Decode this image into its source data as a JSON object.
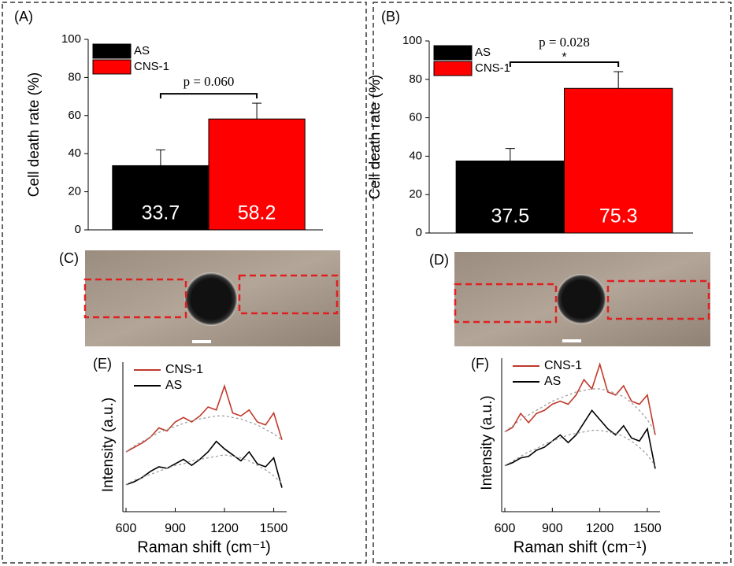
{
  "chart_data": [
    {
      "type": "bar",
      "panel_label": "(A)",
      "ylabel": "Cell death rate (%)",
      "categories": [
        null
      ],
      "series": [
        {
          "name": "AS",
          "color": "#000000",
          "values": [
            33.7
          ],
          "error": [
            8.3
          ]
        },
        {
          "name": "CNS-1",
          "color": "#ff0000",
          "values": [
            58.2
          ],
          "error": [
            8.3
          ]
        }
      ],
      "ylim": [
        0,
        100
      ],
      "yticks": [
        0,
        20,
        40,
        60,
        80,
        100
      ],
      "legend": "upper left",
      "annotation": "p = 0.060"
    },
    {
      "type": "bar",
      "panel_label": "(B)",
      "ylabel": "Cell death rate (%)",
      "categories": [
        null
      ],
      "series": [
        {
          "name": "AS",
          "color": "#000000",
          "values": [
            37.5
          ],
          "error": [
            6.5
          ]
        },
        {
          "name": "CNS-1",
          "color": "#ff0000",
          "values": [
            75.3
          ],
          "error": [
            8.7
          ]
        }
      ],
      "ylim": [
        0,
        100
      ],
      "yticks": [
        0,
        20,
        40,
        60,
        80,
        100
      ],
      "legend": "upper left",
      "annotation": "p = 0.028",
      "annotation_mark": "*"
    },
    {
      "type": "line",
      "panel_label": "(E)",
      "xlabel": "Raman shift (cm⁻¹)",
      "ylabel": "Intensity (a.u.)",
      "x": [
        600,
        650,
        700,
        750,
        800,
        850,
        900,
        950,
        1000,
        1050,
        1100,
        1150,
        1200,
        1250,
        1300,
        1350,
        1400,
        1450,
        1500,
        1550
      ],
      "series": [
        {
          "name": "CNS-1",
          "color": "#c0392b",
          "values": [
            40,
            43,
            46,
            50,
            56,
            54,
            60,
            63,
            60,
            64,
            70,
            68,
            84,
            66,
            64,
            68,
            60,
            58,
            66,
            48
          ]
        },
        {
          "name": "AS",
          "color": "#000000",
          "values": [
            18,
            20,
            23,
            27,
            30,
            29,
            32,
            35,
            31,
            35,
            40,
            47,
            42,
            38,
            34,
            40,
            32,
            30,
            36,
            16
          ]
        },
        {
          "color": "#999999",
          "dashed": true,
          "values": [
            40,
            44,
            47,
            50,
            53,
            55,
            57,
            59,
            61,
            62,
            63,
            64,
            64,
            63,
            62,
            60,
            58,
            55,
            52,
            48
          ]
        },
        {
          "color": "#999999",
          "dashed": true,
          "values": [
            18,
            21,
            23,
            25,
            27,
            29,
            31,
            32,
            34,
            35,
            36,
            37,
            38,
            37,
            36,
            34,
            31,
            28,
            24,
            19
          ]
        }
      ],
      "xlim": [
        600,
        1550
      ],
      "xticks": [
        600,
        900,
        1200,
        1500
      ],
      "ylim": [
        0,
        100
      ],
      "legend": "upper left"
    },
    {
      "type": "line",
      "panel_label": "(F)",
      "xlabel": "Raman shift (cm⁻¹)",
      "ylabel": "Intensity (a.u.)",
      "x": [
        600,
        650,
        700,
        750,
        800,
        850,
        900,
        950,
        1000,
        1050,
        1100,
        1150,
        1200,
        1250,
        1300,
        1350,
        1400,
        1450,
        1500,
        1550
      ],
      "series": [
        {
          "name": "CNS-1",
          "color": "#c0392b",
          "values": [
            52,
            55,
            64,
            58,
            64,
            66,
            70,
            72,
            70,
            76,
            86,
            80,
            96,
            78,
            76,
            82,
            72,
            70,
            76,
            50
          ]
        },
        {
          "name": "AS",
          "color": "#000000",
          "values": [
            30,
            32,
            35,
            36,
            40,
            42,
            46,
            50,
            45,
            50,
            58,
            66,
            60,
            54,
            50,
            56,
            48,
            46,
            54,
            28
          ]
        },
        {
          "color": "#999999",
          "dashed": true,
          "values": [
            52,
            56,
            60,
            63,
            66,
            69,
            72,
            74,
            76,
            78,
            79,
            80,
            80,
            79,
            77,
            75,
            71,
            66,
            60,
            52
          ]
        },
        {
          "color": "#999999",
          "dashed": true,
          "values": [
            30,
            33,
            36,
            39,
            41,
            44,
            46,
            48,
            50,
            51,
            52,
            53,
            53,
            52,
            51,
            49,
            46,
            42,
            37,
            30
          ]
        }
      ],
      "xlim": [
        600,
        1550
      ],
      "xticks": [
        600,
        900,
        1200,
        1500
      ],
      "ylim": [
        0,
        100
      ],
      "legend": "upper left"
    }
  ],
  "images": [
    {
      "panel_label": "(C)"
    },
    {
      "panel_label": "(D)"
    }
  ]
}
